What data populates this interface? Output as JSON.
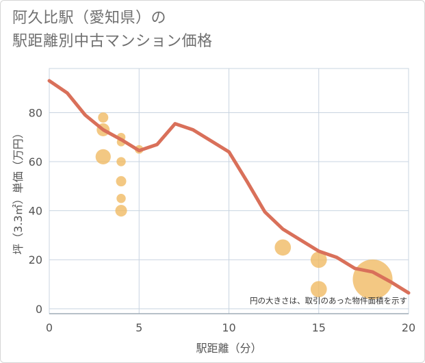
{
  "title_line1": "阿久比駅（愛知県）の",
  "title_line2": "駅距離別中古マンション価格",
  "chart_data": {
    "type": "scatter",
    "xlabel": "駅距離（分）",
    "ylabel": "坪（3.3㎡）単価（万円）",
    "xlim": [
      0,
      20
    ],
    "ylim": [
      -2,
      98
    ],
    "x_ticks": [
      0,
      5,
      10,
      15,
      20
    ],
    "y_ticks": [
      0,
      20,
      40,
      60,
      80
    ],
    "x_tick_labels": [
      "0",
      "5",
      "10",
      "15",
      "20"
    ],
    "y_tick_labels": [
      "0",
      "20",
      "40",
      "60",
      "80"
    ],
    "grid": true,
    "note": "円の大きさは、取引のあった物件面積を示す",
    "colors": {
      "bubble": "#f0b860",
      "line": "#d9705a",
      "grid": "#c8d4e0"
    },
    "bubbles": [
      {
        "x": 3,
        "y": 78,
        "size": 1
      },
      {
        "x": 3,
        "y": 73,
        "size": 1.6
      },
      {
        "x": 3,
        "y": 62,
        "size": 2.2
      },
      {
        "x": 4,
        "y": 70,
        "size": 0.7
      },
      {
        "x": 4,
        "y": 68,
        "size": 0.7
      },
      {
        "x": 4,
        "y": 60,
        "size": 0.8
      },
      {
        "x": 4,
        "y": 52,
        "size": 1
      },
      {
        "x": 4,
        "y": 45,
        "size": 0.8
      },
      {
        "x": 4,
        "y": 40,
        "size": 1.3
      },
      {
        "x": 5,
        "y": 65,
        "size": 0.7
      },
      {
        "x": 13,
        "y": 25,
        "size": 2.5
      },
      {
        "x": 15,
        "y": 20,
        "size": 2.5
      },
      {
        "x": 15,
        "y": 8,
        "size": 2.5
      },
      {
        "x": 18,
        "y": 12,
        "size": 15
      }
    ],
    "trend_line": [
      {
        "x": 0,
        "y": 93
      },
      {
        "x": 1,
        "y": 88
      },
      {
        "x": 2,
        "y": 79
      },
      {
        "x": 3,
        "y": 73
      },
      {
        "x": 4,
        "y": 69
      },
      {
        "x": 5,
        "y": 64.5
      },
      {
        "x": 6,
        "y": 67
      },
      {
        "x": 7,
        "y": 75.5
      },
      {
        "x": 8,
        "y": 73
      },
      {
        "x": 9,
        "y": 68.5
      },
      {
        "x": 10,
        "y": 64
      },
      {
        "x": 11,
        "y": 52
      },
      {
        "x": 12,
        "y": 39.5
      },
      {
        "x": 13,
        "y": 32.5
      },
      {
        "x": 14,
        "y": 28
      },
      {
        "x": 15,
        "y": 23.5
      },
      {
        "x": 16,
        "y": 21
      },
      {
        "x": 17,
        "y": 16.5
      },
      {
        "x": 18,
        "y": 15
      },
      {
        "x": 19,
        "y": 11
      },
      {
        "x": 20,
        "y": 6.5
      }
    ]
  }
}
